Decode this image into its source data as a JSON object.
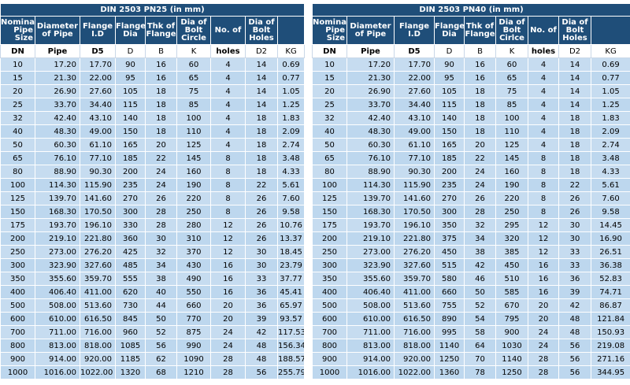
{
  "tables": [
    {
      "title": "DIN 2503 PN25 (in mm)",
      "headers": [
        "Nominal Pipe Size",
        "Diameter of Pipe",
        "Flange I.D",
        "Flange Dia",
        "Thk of Flange",
        "Dia of Bolt Circle",
        "No. of",
        "Dia of Bolt Holes",
        ""
      ],
      "units": [
        "DN",
        "Pipe",
        "D5",
        "D",
        "B",
        "K",
        "holes",
        "D2",
        "KG"
      ],
      "rows": [
        [
          "10",
          "17.20",
          "17.70",
          "90",
          "16",
          "60",
          "4",
          "14",
          "0.69"
        ],
        [
          "15",
          "21.30",
          "22.00",
          "95",
          "16",
          "65",
          "4",
          "14",
          "0.77"
        ],
        [
          "20",
          "26.90",
          "27.60",
          "105",
          "18",
          "75",
          "4",
          "14",
          "1.05"
        ],
        [
          "25",
          "33.70",
          "34.40",
          "115",
          "18",
          "85",
          "4",
          "14",
          "1.25"
        ],
        [
          "32",
          "42.40",
          "43.10",
          "140",
          "18",
          "100",
          "4",
          "18",
          "1.83"
        ],
        [
          "40",
          "48.30",
          "49.00",
          "150",
          "18",
          "110",
          "4",
          "18",
          "2.09"
        ],
        [
          "50",
          "60.30",
          "61.10",
          "165",
          "20",
          "125",
          "4",
          "18",
          "2.74"
        ],
        [
          "65",
          "76.10",
          "77.10",
          "185",
          "22",
          "145",
          "8",
          "18",
          "3.48"
        ],
        [
          "80",
          "88.90",
          "90.30",
          "200",
          "24",
          "160",
          "8",
          "18",
          "4.33"
        ],
        [
          "100",
          "114.30",
          "115.90",
          "235",
          "24",
          "190",
          "8",
          "22",
          "5.61"
        ],
        [
          "125",
          "139.70",
          "141.60",
          "270",
          "26",
          "220",
          "8",
          "26",
          "7.60"
        ],
        [
          "150",
          "168.30",
          "170.50",
          "300",
          "28",
          "250",
          "8",
          "26",
          "9.58"
        ],
        [
          "175",
          "193.70",
          "196.10",
          "330",
          "28",
          "280",
          "12",
          "26",
          "10.76"
        ],
        [
          "200",
          "219.10",
          "221.80",
          "360",
          "30",
          "310",
          "12",
          "26",
          "13.37"
        ],
        [
          "250",
          "273.00",
          "276.20",
          "425",
          "32",
          "370",
          "12",
          "30",
          "18.45"
        ],
        [
          "300",
          "323.90",
          "327.60",
          "485",
          "34",
          "430",
          "16",
          "30",
          "23.79"
        ],
        [
          "350",
          "355.60",
          "359.70",
          "555",
          "38",
          "490",
          "16",
          "33",
          "37.77"
        ],
        [
          "400",
          "406.40",
          "411.00",
          "620",
          "40",
          "550",
          "16",
          "36",
          "45.41"
        ],
        [
          "500",
          "508.00",
          "513.60",
          "730",
          "44",
          "660",
          "20",
          "36",
          "65.97"
        ],
        [
          "600",
          "610.00",
          "616.50",
          "845",
          "50",
          "770",
          "20",
          "39",
          "93.57"
        ],
        [
          "700",
          "711.00",
          "716.00",
          "960",
          "52",
          "875",
          "24",
          "42",
          "117.53"
        ],
        [
          "800",
          "813.00",
          "818.00",
          "1085",
          "56",
          "990",
          "24",
          "48",
          "156.34"
        ],
        [
          "900",
          "914.00",
          "920.00",
          "1185",
          "62",
          "1090",
          "28",
          "48",
          "188.57"
        ],
        [
          "1000",
          "1016.00",
          "1022.00",
          "1320",
          "68",
          "1210",
          "28",
          "56",
          "255.79"
        ]
      ]
    },
    {
      "title": "DIN 2503 PN40 (in mm)",
      "headers": [
        "Nominal Pipe Size",
        "Diameter of Pipe",
        "Flange I.D",
        "Flange Dia",
        "Thk of Flange",
        "Dia of Bolt Cirlce",
        "No. of",
        "Dia of Bolt Holes",
        ""
      ],
      "units": [
        "DN",
        "Pipe",
        "D5",
        "D",
        "B",
        "K",
        "holes",
        "D2",
        "KG"
      ],
      "rows": [
        [
          "10",
          "17.20",
          "17.70",
          "90",
          "16",
          "60",
          "4",
          "14",
          "0.69"
        ],
        [
          "15",
          "21.30",
          "22.00",
          "95",
          "16",
          "65",
          "4",
          "14",
          "0.77"
        ],
        [
          "20",
          "26.90",
          "27.60",
          "105",
          "18",
          "75",
          "4",
          "14",
          "1.05"
        ],
        [
          "25",
          "33.70",
          "34.40",
          "115",
          "18",
          "85",
          "4",
          "14",
          "1.25"
        ],
        [
          "32",
          "42.40",
          "43.10",
          "140",
          "18",
          "100",
          "4",
          "18",
          "1.83"
        ],
        [
          "40",
          "48.30",
          "49.00",
          "150",
          "18",
          "110",
          "4",
          "18",
          "2.09"
        ],
        [
          "50",
          "60.30",
          "61.10",
          "165",
          "20",
          "125",
          "4",
          "18",
          "2.74"
        ],
        [
          "65",
          "76.10",
          "77.10",
          "185",
          "22",
          "145",
          "8",
          "18",
          "3.48"
        ],
        [
          "80",
          "88.90",
          "90.30",
          "200",
          "24",
          "160",
          "8",
          "18",
          "4.33"
        ],
        [
          "100",
          "114.30",
          "115.90",
          "235",
          "24",
          "190",
          "8",
          "22",
          "5.61"
        ],
        [
          "125",
          "139.70",
          "141.60",
          "270",
          "26",
          "220",
          "8",
          "26",
          "7.60"
        ],
        [
          "150",
          "168.30",
          "170.50",
          "300",
          "28",
          "250",
          "8",
          "26",
          "9.58"
        ],
        [
          "175",
          "193.70",
          "196.10",
          "350",
          "32",
          "295",
          "12",
          "30",
          "14.45"
        ],
        [
          "200",
          "219.10",
          "221.80",
          "375",
          "34",
          "320",
          "12",
          "30",
          "16.90"
        ],
        [
          "250",
          "273.00",
          "276.20",
          "450",
          "38",
          "385",
          "12",
          "33",
          "26.51"
        ],
        [
          "300",
          "323.90",
          "327.60",
          "515",
          "42",
          "450",
          "16",
          "33",
          "36.38"
        ],
        [
          "350",
          "355.60",
          "359.70",
          "580",
          "46",
          "510",
          "16",
          "36",
          "52.83"
        ],
        [
          "400",
          "406.40",
          "411.00",
          "660",
          "50",
          "585",
          "16",
          "39",
          "74.71"
        ],
        [
          "500",
          "508.00",
          "513.60",
          "755",
          "52",
          "670",
          "20",
          "42",
          "86.87"
        ],
        [
          "600",
          "610.00",
          "616.50",
          "890",
          "54",
          "795",
          "20",
          "48",
          "121.84"
        ],
        [
          "700",
          "711.00",
          "716.00",
          "995",
          "58",
          "900",
          "24",
          "48",
          "150.93"
        ],
        [
          "800",
          "813.00",
          "818.00",
          "1140",
          "64",
          "1030",
          "24",
          "56",
          "219.08"
        ],
        [
          "900",
          "914.00",
          "920.00",
          "1250",
          "70",
          "1140",
          "28",
          "56",
          "271.16"
        ],
        [
          "1000",
          "1016.00",
          "1022.00",
          "1360",
          "78",
          "1250",
          "28",
          "56",
          "344.95"
        ]
      ]
    }
  ]
}
